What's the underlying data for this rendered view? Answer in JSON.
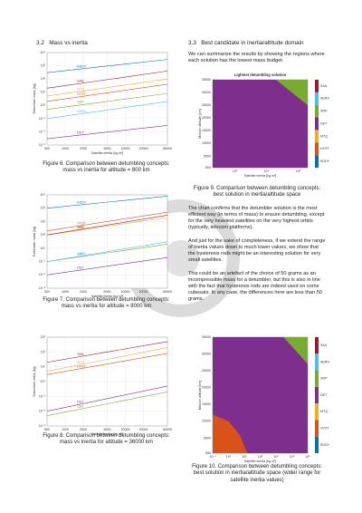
{
  "sections": [
    {
      "number": "3.2",
      "title": "Mass vs inertia"
    },
    {
      "number": "3.3",
      "title": "Best candidate in inertia/altitude domain"
    }
  ],
  "paragraphs": [
    "We can summarize the results by showing the regions where each solution has the lowest mass budget.",
    "The chart confirms that the detumbler solution is the most efficient way (in terms of mass) to ensure detumbling, except for the very heaviest satellites on the very highest orbits (typically, telecom platforms).",
    "And just for the sake of completeness, if we extend the range of inertia values down to much lower values, we show that the hysteresis rods might be an interesting solution for very small satellites.",
    "This could be an artefact of the choice of 50 grams as an incompressible mass for a detumbler, but this is also in line with the fact that hysteresis rods are indeed used on some cubesats. In any case, the differences here are less than 50 grams."
  ],
  "captions": [
    "Figure 6. Comparison between detumbling concepts: mass vs inertia for altitude = 800 km",
    "Figure 7. Comparison between detumbling concepts: mass vs inertia for altitude = 8000 km",
    "Figure 8. Comparison between detumbling concepts: mass vs inertia for altitude = 36000 km",
    "Figure 9. Comparison between detumbling concepts: best solution in inertia/altitude space",
    "Figure 10. Comparison between detumbling concepts: best solution in inertia/altitude space (wider range for satellite inertia values)"
  ],
  "chart_data": [
    {
      "type": "line",
      "xlabel": "Satellite inertia [kg m²]",
      "ylabel": "Detumbler mass [kg]",
      "log_x": true,
      "log_y": true,
      "grid": true,
      "x": [
        500,
        50000
      ],
      "xlim": [
        500,
        50000
      ],
      "xticks": [
        500,
        1000,
        2000,
        5000,
        10000,
        20000,
        50000
      ],
      "ylim": [
        0.001,
        10000
      ],
      "yticks": [
        {
          "value": 0.001,
          "label": "10⁻³"
        },
        {
          "value": 0.01,
          "label": "10⁻²"
        },
        {
          "value": 0.1,
          "label": "10⁻¹"
        },
        {
          "value": 1,
          "label": "10⁰"
        },
        {
          "value": 10,
          "label": "10¹"
        },
        {
          "value": 100,
          "label": "10²"
        },
        {
          "value": 1000,
          "label": "10³"
        },
        {
          "value": 10000,
          "label": "10⁴"
        }
      ],
      "series": [
        {
          "name": "EDDY",
          "color": "#0072bd",
          "values": [
            300,
            3000
          ]
        },
        {
          "name": "SAIL",
          "color": "#a2142f",
          "values": [
            20,
            400
          ]
        },
        {
          "name": "MTQ",
          "color": "#edb120",
          "values": [
            5,
            100
          ]
        },
        {
          "name": "HYST",
          "color": "#d95319",
          "values": [
            2,
            40
          ]
        },
        {
          "name": "SRP",
          "color": "#77ac30",
          "values": [
            0.5,
            8
          ]
        },
        {
          "name": "AERO",
          "color": "#4dbeee",
          "values": [
            0.1,
            2
          ]
        },
        {
          "name": "DET",
          "color": "#7e2f8e",
          "values": [
            0.003,
            0.03
          ]
        }
      ]
    },
    {
      "type": "line",
      "xlabel": "Satellite inertia [kg m²]",
      "ylabel": "Detumbler mass [kg]",
      "log_x": true,
      "log_y": true,
      "grid": true,
      "x": [
        500,
        50000
      ],
      "xlim": [
        500,
        50000
      ],
      "xticks": [
        500,
        1000,
        2000,
        5000,
        10000,
        20000,
        50000
      ],
      "ylim": [
        0.001,
        10000
      ],
      "yticks": [
        {
          "value": 0.001,
          "label": "10⁻³"
        },
        {
          "value": 0.01,
          "label": "10⁻²"
        },
        {
          "value": 0.1,
          "label": "10⁻¹"
        },
        {
          "value": 1,
          "label": "10⁰"
        },
        {
          "value": 10,
          "label": "10¹"
        },
        {
          "value": 100,
          "label": "10²"
        },
        {
          "value": 1000,
          "label": "10³"
        },
        {
          "value": 10000,
          "label": "10⁴"
        }
      ],
      "series": [
        {
          "name": "EDDY",
          "color": "#0072bd",
          "values": [
            1000,
            8000
          ]
        },
        {
          "name": "HYST",
          "color": "#d95319",
          "values": [
            20,
            500
          ]
        },
        {
          "name": "MTQ",
          "color": "#edb120",
          "values": [
            10,
            200
          ]
        },
        {
          "name": "SAIL",
          "color": "#a2142f",
          "values": [
            10,
            300
          ]
        },
        {
          "name": "SRP",
          "color": "#77ac30",
          "values": [
            0.1,
            2
          ]
        },
        {
          "name": "AERO",
          "color": "#4dbeee",
          "values": [
            0.1,
            3
          ]
        },
        {
          "name": "DET",
          "color": "#7e2f8e",
          "values": [
            0.01,
            0.2
          ]
        }
      ]
    },
    {
      "type": "line",
      "xlabel": "Satellite inertia [kg m²]",
      "ylabel": "Detumbler mass [kg]",
      "log_x": true,
      "log_y": true,
      "grid": true,
      "x": [
        500,
        50000
      ],
      "xlim": [
        500,
        50000
      ],
      "xticks": [
        500,
        1000,
        2000,
        5000,
        10000,
        20000,
        50000
      ],
      "ylim": [
        0.001,
        1000
      ],
      "yticks": [
        {
          "value": 0.001,
          "label": "10⁻³"
        },
        {
          "value": 0.01,
          "label": "10⁻²"
        },
        {
          "value": 0.1,
          "label": "10⁻¹"
        },
        {
          "value": 1,
          "label": "10⁰"
        },
        {
          "value": 10,
          "label": "10¹"
        },
        {
          "value": 100,
          "label": "10²"
        },
        {
          "value": 1000,
          "label": "10³"
        }
      ],
      "series": [
        {
          "name": "SAIL",
          "color": "#a2142f",
          "values": [
            20,
            500
          ]
        },
        {
          "name": "MTQ",
          "color": "#edb120",
          "values": [
            5,
            200
          ]
        },
        {
          "name": "HYST",
          "color": "#d95319",
          "values": [
            3,
            80
          ]
        },
        {
          "name": "DET",
          "color": "#7e2f8e",
          "values": [
            0.01,
            0.5
          ]
        },
        {
          "name": "SRP",
          "color": "#77ac30",
          "values": [
            0.005,
            0.2
          ]
        }
      ]
    },
    {
      "type": "region",
      "title": "Lightest detumbling solution",
      "xlabel": "Satellite inertia [kg m²]",
      "ylabel": "Mission altitude [km]",
      "log_x": true,
      "xlim": [
        200,
        200000
      ],
      "xticks": [
        {
          "value": 1000,
          "label": "10³"
        },
        {
          "value": 10000,
          "label": "10⁴"
        },
        {
          "value": 100000,
          "label": "10⁵"
        }
      ],
      "ylim": [
        500,
        35000
      ],
      "yticks": [
        500,
        5000,
        10000,
        15000,
        20000,
        25000,
        30000,
        35000
      ],
      "series": [
        {
          "name": "SAIL",
          "color": "#a2142f"
        },
        {
          "name": "AERO",
          "color": "#4dbeee"
        },
        {
          "name": "SRP",
          "color": "#77ac30",
          "x": [
            20000,
            200000,
            200000
          ],
          "y": [
            35000,
            35000,
            25000
          ]
        },
        {
          "name": "DET",
          "color": "#7e2f8e",
          "x": [
            200,
            200000,
            200000,
            200
          ],
          "y": [
            500,
            500,
            35000,
            35000
          ]
        },
        {
          "name": "MTQ",
          "color": "#edb120"
        },
        {
          "name": "HYST",
          "color": "#d95319"
        },
        {
          "name": "EDDY",
          "color": "#0072bd"
        }
      ]
    },
    {
      "type": "region",
      "xlabel": "Satellite inertia [kg m²]",
      "ylabel": "Mission altitude [km]",
      "log_x": true,
      "xlim": [
        0.1,
        100000
      ],
      "xticks": [
        {
          "value": 0.1,
          "label": "10⁻¹"
        },
        {
          "value": 1,
          "label": "10⁰"
        },
        {
          "value": 10,
          "label": "10¹"
        },
        {
          "value": 100,
          "label": "10²"
        },
        {
          "value": 1000,
          "label": "10³"
        },
        {
          "value": 10000,
          "label": "10⁴"
        },
        {
          "value": 100000,
          "label": "10⁵"
        }
      ],
      "ylim": [
        500,
        35000
      ],
      "yticks": [
        500,
        5000,
        10000,
        15000,
        20000,
        25000,
        30000,
        35000
      ],
      "series": [
        {
          "name": "SAIL",
          "color": "#a2142f"
        },
        {
          "name": "AERO",
          "color": "#4dbeee"
        },
        {
          "name": "SRP",
          "color": "#77ac30",
          "x": [
            3000,
            100000,
            100000
          ],
          "y": [
            35000,
            35000,
            27000
          ]
        },
        {
          "name": "DET",
          "color": "#7e2f8e",
          "x": [
            0.1,
            100000,
            100000,
            0.1
          ],
          "y": [
            500,
            500,
            35000,
            35000
          ]
        },
        {
          "name": "MTQ",
          "color": "#edb120"
        },
        {
          "name": "HYST",
          "color": "#d95319",
          "x": [
            0.1,
            0.1,
            1,
            5,
            15
          ],
          "y": [
            500,
            12000,
            10000,
            6000,
            500
          ]
        },
        {
          "name": "EDDY",
          "color": "#0072bd"
        }
      ]
    }
  ]
}
